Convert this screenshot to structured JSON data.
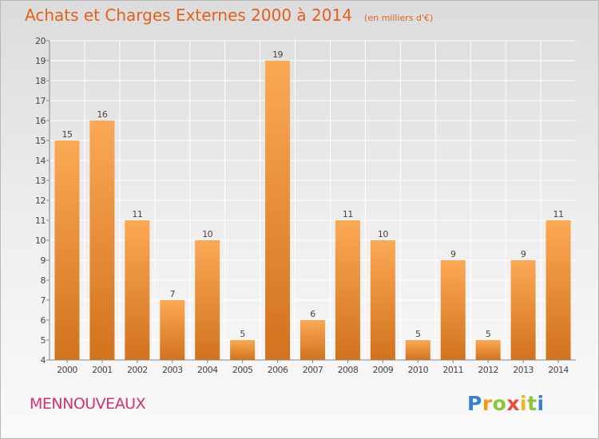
{
  "header": {
    "title": "Achats et Charges Externes 2000 à 2014",
    "subtitle": "(en milliers d'€)"
  },
  "footer": {
    "commune": "MENNOUVEAUX",
    "logo_letters": [
      "P",
      "r",
      "o",
      "x",
      "i",
      "t",
      "i"
    ],
    "logo_colors": [
      "#3b7fd0",
      "#f39a1a",
      "#8cc43c",
      "#e94b3c",
      "#f3b51a",
      "#8cc43c",
      "#3b7fd0"
    ]
  },
  "chart_data": {
    "type": "bar",
    "title": "Achats et Charges Externes 2000 à 2014",
    "subtitle": "(en milliers d'€)",
    "categories": [
      "2000",
      "2001",
      "2002",
      "2003",
      "2004",
      "2005",
      "2006",
      "2007",
      "2008",
      "2009",
      "2010",
      "2011",
      "2012",
      "2013",
      "2014"
    ],
    "values": [
      15,
      16,
      11,
      7,
      10,
      5,
      19,
      6,
      11,
      10,
      5,
      9,
      5,
      9,
      11
    ],
    "ylim": [
      4,
      20
    ],
    "yticks": [
      4,
      5,
      6,
      7,
      8,
      9,
      10,
      11,
      12,
      13,
      14,
      15,
      16,
      17,
      18,
      19,
      20
    ],
    "grid": true,
    "legend": "none",
    "colors": {
      "bar_light": "#fba955",
      "bar_dark": "#d2721d",
      "label": "#444444",
      "grid": "#ffffff"
    }
  }
}
